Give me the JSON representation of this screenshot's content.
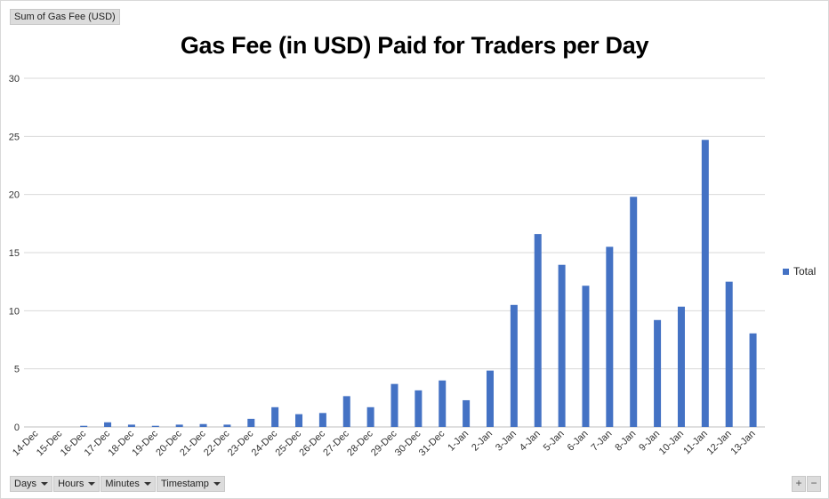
{
  "value_field_button": "Sum of Gas Fee (USD)",
  "chart_data": {
    "type": "bar",
    "title": "Gas Fee (in USD) Paid for Traders per Day",
    "categories": [
      "14-Dec",
      "15-Dec",
      "16-Dec",
      "17-Dec",
      "18-Dec",
      "19-Dec",
      "20-Dec",
      "21-Dec",
      "22-Dec",
      "23-Dec",
      "24-Dec",
      "25-Dec",
      "26-Dec",
      "27-Dec",
      "28-Dec",
      "29-Dec",
      "30-Dec",
      "31-Dec",
      "1-Jan",
      "2-Jan",
      "3-Jan",
      "4-Jan",
      "5-Jan",
      "6-Jan",
      "7-Jan",
      "8-Jan",
      "9-Jan",
      "10-Jan",
      "11-Jan",
      "12-Jan",
      "13-Jan"
    ],
    "series": [
      {
        "name": "Total",
        "color": "#4472c4",
        "values": [
          0,
          0,
          0.1,
          0.4,
          0.2,
          0.1,
          0.2,
          0.25,
          0.2,
          0.7,
          1.7,
          1.1,
          1.2,
          2.65,
          1.7,
          3.7,
          3.15,
          4.0,
          2.3,
          4.85,
          10.5,
          16.6,
          13.95,
          12.15,
          15.5,
          19.8,
          9.2,
          10.35,
          24.7,
          12.5,
          8.05
        ]
      }
    ],
    "ylim": [
      0,
      30
    ],
    "yticks": [
      0,
      5,
      10,
      15,
      20,
      25,
      30
    ],
    "grid": true,
    "legend": "right"
  },
  "axis_field_buttons": [
    "Days",
    "Hours",
    "Minutes",
    "Timestamp"
  ],
  "zoom_buttons": [
    "+",
    "−"
  ]
}
